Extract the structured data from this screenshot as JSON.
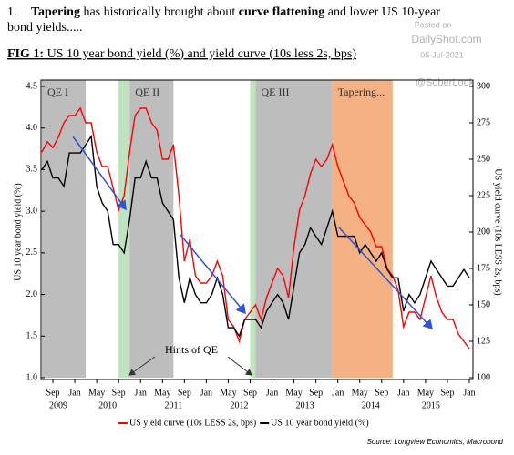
{
  "header": {
    "number": "1.",
    "parts": [
      {
        "text": "Tapering",
        "bold": true
      },
      {
        "text": " has historically brought about ",
        "bold": false
      },
      {
        "text": "curve flattening",
        "bold": true
      },
      {
        "text": " and lower US 10-year",
        "bold": false
      }
    ],
    "line2": "bond yields....."
  },
  "watermark": {
    "posted": "Posted on",
    "site": "DailyShot.com",
    "date": "06-Jul-2021",
    "handle": "@SoberLook"
  },
  "chart_data": {
    "type": "line",
    "title_bold": "FIG 1:",
    "title": " US 10 year bond yield (%) and yield curve (10s less 2s, bps)",
    "ylabel": "US 10 year bond yield (%)",
    "y2label": "US yield curve (10s LESS 2s, bps)",
    "source": "Source: Longview Economics, Macrobond",
    "annotation": "Hints of QE",
    "xlim": [
      "2009-07",
      "2016-01"
    ],
    "ylim": [
      1,
      4.5
    ],
    "yticks": [
      {
        "value": 1,
        "label": "1.0"
      },
      1.5,
      {
        "value": 2,
        "label": "2.0"
      },
      2.5,
      {
        "value": 3,
        "label": "3.0"
      },
      3.5,
      {
        "value": 4,
        "label": "4.0"
      },
      4.5
    ],
    "y2lim": [
      100,
      300
    ],
    "y2ticks": [
      100,
      125,
      150,
      175,
      200,
      225,
      250,
      275,
      300
    ],
    "xticks": [
      {
        "value": "2009-09",
        "label": "Sep"
      },
      {
        "value": "2010-01",
        "label": "Jan"
      },
      {
        "value": "2010-05",
        "label": "May"
      },
      {
        "value": "2010-09",
        "label": "Sep"
      },
      {
        "value": "2011-01",
        "label": "Jan"
      },
      {
        "value": "2011-05",
        "label": "May"
      },
      {
        "value": "2011-09",
        "label": "Sep"
      },
      {
        "value": "2012-01",
        "label": "Jan"
      },
      {
        "value": "2012-05",
        "label": "May"
      },
      {
        "value": "2012-09",
        "label": "Sep"
      },
      {
        "value": "2013-01",
        "label": "Jan"
      },
      {
        "value": "2013-05",
        "label": "May"
      },
      {
        "value": "2013-09",
        "label": "Sep"
      },
      {
        "value": "2014-01",
        "label": "Jan"
      },
      {
        "value": "2014-05",
        "label": "May"
      },
      {
        "value": "2014-09",
        "label": "Sep"
      },
      {
        "value": "2015-01",
        "label": "Jan"
      },
      {
        "value": "2015-05",
        "label": "May"
      },
      {
        "value": "2015-09",
        "label": "Sep"
      },
      {
        "value": "2016-01",
        "label": "Jan"
      }
    ],
    "x_year_labels": [
      {
        "value": "2009-10",
        "label": "2009"
      },
      {
        "value": "2010-07",
        "label": "2010"
      },
      {
        "value": "2011-07",
        "label": "2011"
      },
      {
        "value": "2012-07",
        "label": "2012"
      },
      {
        "value": "2013-07",
        "label": "2013"
      },
      {
        "value": "2014-07",
        "label": "2014"
      },
      {
        "value": "2015-06",
        "label": "2015"
      }
    ],
    "regions": [
      {
        "label": "QE I",
        "start": "2009-07",
        "end": "2010-03",
        "color": "#bdbdbd"
      },
      {
        "start": "2010-09",
        "end": "2010-11",
        "color": "#bfe3bf"
      },
      {
        "label": "QE II",
        "start": "2010-11",
        "end": "2011-07",
        "color": "#bdbdbd"
      },
      {
        "start": "2012-09",
        "end": "2012-10",
        "color": "#bfe3bf"
      },
      {
        "label": "QE III",
        "start": "2012-10",
        "end": "2013-12",
        "color": "#bdbdbd"
      },
      {
        "label": "Tapering...",
        "start": "2013-12",
        "end": "2014-11",
        "color": "#f4b183"
      }
    ],
    "x": [
      "2009-07",
      "2009-08",
      "2009-09",
      "2009-10",
      "2009-11",
      "2009-12",
      "2010-01",
      "2010-02",
      "2010-03",
      "2010-04",
      "2010-05",
      "2010-06",
      "2010-07",
      "2010-08",
      "2010-09",
      "2010-10",
      "2010-11",
      "2010-12",
      "2011-01",
      "2011-02",
      "2011-03",
      "2011-04",
      "2011-05",
      "2011-06",
      "2011-07",
      "2011-08",
      "2011-09",
      "2011-10",
      "2011-11",
      "2011-12",
      "2012-01",
      "2012-02",
      "2012-03",
      "2012-04",
      "2012-05",
      "2012-06",
      "2012-07",
      "2012-08",
      "2012-09",
      "2012-10",
      "2012-11",
      "2012-12",
      "2013-01",
      "2013-02",
      "2013-03",
      "2013-04",
      "2013-05",
      "2013-06",
      "2013-07",
      "2013-08",
      "2013-09",
      "2013-10",
      "2013-11",
      "2013-12",
      "2014-01",
      "2014-02",
      "2014-03",
      "2014-04",
      "2014-05",
      "2014-06",
      "2014-07",
      "2014-08",
      "2014-09",
      "2014-10",
      "2014-11",
      "2014-12",
      "2015-01",
      "2015-02",
      "2015-03",
      "2015-04",
      "2015-05",
      "2015-06",
      "2015-07",
      "2015-08",
      "2015-09",
      "2015-10",
      "2015-11",
      "2015-12",
      "2016-01"
    ],
    "series": [
      {
        "name": "US yield curve (10s LESS 2s, bps)",
        "color": "#ff0000",
        "axis": "y2",
        "values": [
          255,
          262,
          258,
          265,
          275,
          280,
          280,
          285,
          275,
          275,
          255,
          245,
          245,
          230,
          215,
          225,
          255,
          280,
          285,
          285,
          275,
          270,
          250,
          250,
          260,
          225,
          180,
          195,
          170,
          165,
          165,
          170,
          180,
          170,
          140,
          135,
          125,
          140,
          145,
          150,
          140,
          155,
          165,
          175,
          170,
          155,
          190,
          215,
          225,
          240,
          250,
          245,
          250,
          260,
          245,
          235,
          225,
          220,
          210,
          205,
          200,
          190,
          190,
          175,
          170,
          160,
          135,
          145,
          145,
          140,
          155,
          170,
          155,
          145,
          140,
          140,
          130,
          125,
          120
        ]
      },
      {
        "name": "US 10 year bond yield (%)",
        "color": "#000000",
        "values": [
          3.5,
          3.6,
          3.4,
          3.4,
          3.3,
          3.7,
          3.7,
          3.7,
          3.8,
          3.9,
          3.3,
          3.1,
          3.0,
          2.6,
          2.6,
          2.5,
          2.9,
          3.4,
          3.4,
          3.6,
          3.4,
          3.4,
          3.1,
          3.0,
          2.9,
          2.2,
          1.9,
          2.2,
          2.0,
          1.9,
          1.9,
          2.0,
          2.2,
          2.0,
          1.6,
          1.6,
          1.5,
          1.7,
          1.7,
          1.7,
          1.6,
          1.8,
          1.9,
          2.0,
          1.9,
          1.7,
          2.1,
          2.5,
          2.6,
          2.8,
          2.7,
          2.6,
          2.8,
          3.0,
          2.7,
          2.7,
          2.7,
          2.7,
          2.5,
          2.6,
          2.5,
          2.4,
          2.5,
          2.3,
          2.2,
          2.2,
          1.8,
          2.0,
          1.9,
          2.0,
          2.2,
          2.4,
          2.3,
          2.2,
          2.1,
          2.1,
          2.2,
          2.3,
          2.2
        ]
      }
    ]
  }
}
